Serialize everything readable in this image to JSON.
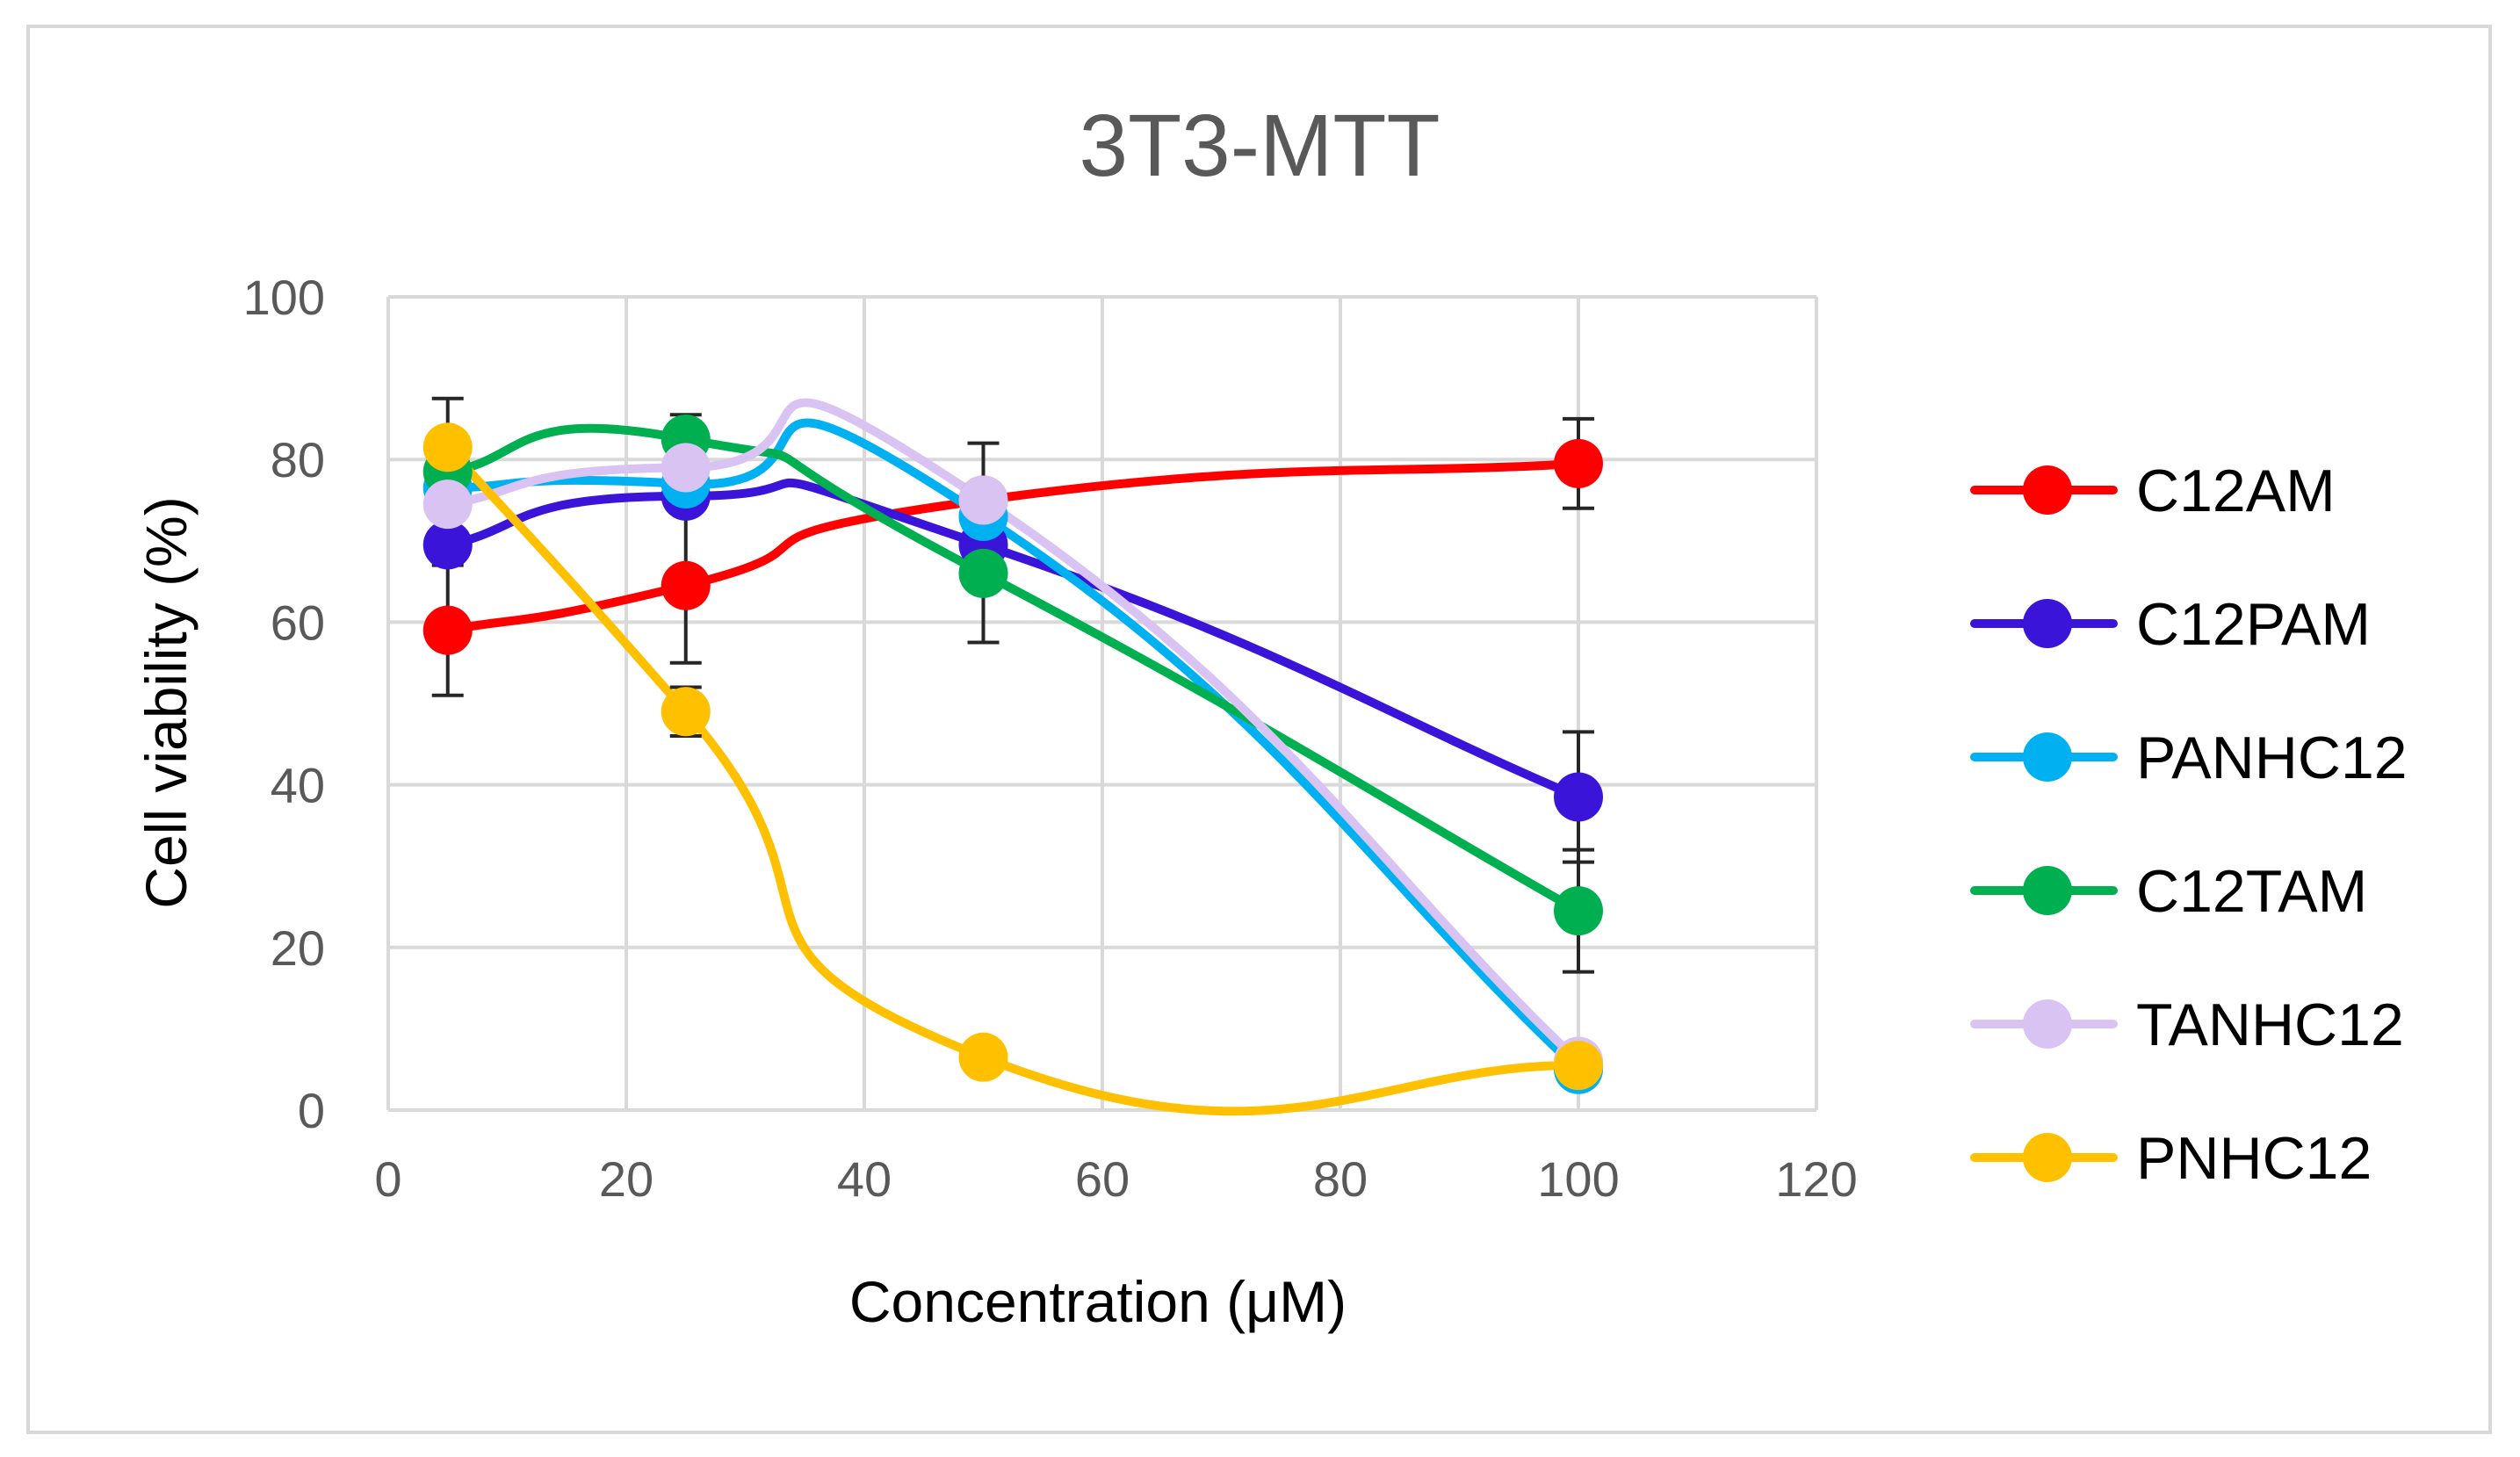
{
  "chart_data": {
    "type": "line",
    "title": "3T3-MTT",
    "xlabel": "Concentration (μM)",
    "ylabel": "Cell viability (%)",
    "xlim": [
      0,
      120
    ],
    "ylim": [
      0,
      100
    ],
    "xticks": [
      0,
      20,
      40,
      60,
      80,
      100,
      120
    ],
    "yticks": [
      0,
      20,
      40,
      60,
      80,
      100
    ],
    "grid": true,
    "smooth": true,
    "legend_position": "right",
    "series": [
      {
        "name": "C12AM",
        "color": "#ff0000",
        "x": [
          5,
          25,
          50,
          100
        ],
        "y": [
          59,
          64.5,
          75,
          79.5
        ],
        "err": [
          8,
          9.5,
          7,
          5.5
        ]
      },
      {
        "name": "C12PAM",
        "color": "#3a14d8",
        "x": [
          5,
          25,
          50,
          100
        ],
        "y": [
          69.5,
          75.5,
          69.5,
          38.5
        ],
        "err": [
          0,
          0,
          0,
          8
        ]
      },
      {
        "name": "PANHC12",
        "color": "#00b0f0",
        "x": [
          5,
          25,
          50,
          100
        ],
        "y": [
          76.5,
          77,
          73,
          5
        ],
        "err": [
          0,
          0,
          0,
          0
        ]
      },
      {
        "name": "C12TAM",
        "color": "#00b050",
        "x": [
          5,
          25,
          50,
          100
        ],
        "y": [
          78.5,
          82.5,
          66,
          24.5
        ],
        "err": [
          0,
          3,
          8.5,
          7.5
        ]
      },
      {
        "name": "TANHC12",
        "color": "#d9c3f2",
        "x": [
          5,
          25,
          50,
          100
        ],
        "y": [
          74.5,
          79,
          75,
          6
        ],
        "err": [
          0,
          0,
          0,
          0
        ]
      },
      {
        "name": "PNHC12",
        "color": "#ffc000",
        "x": [
          5,
          25,
          50,
          100
        ],
        "y": [
          81.5,
          49,
          6.5,
          5.5
        ],
        "err": [
          6,
          3,
          0,
          0
        ]
      }
    ]
  }
}
